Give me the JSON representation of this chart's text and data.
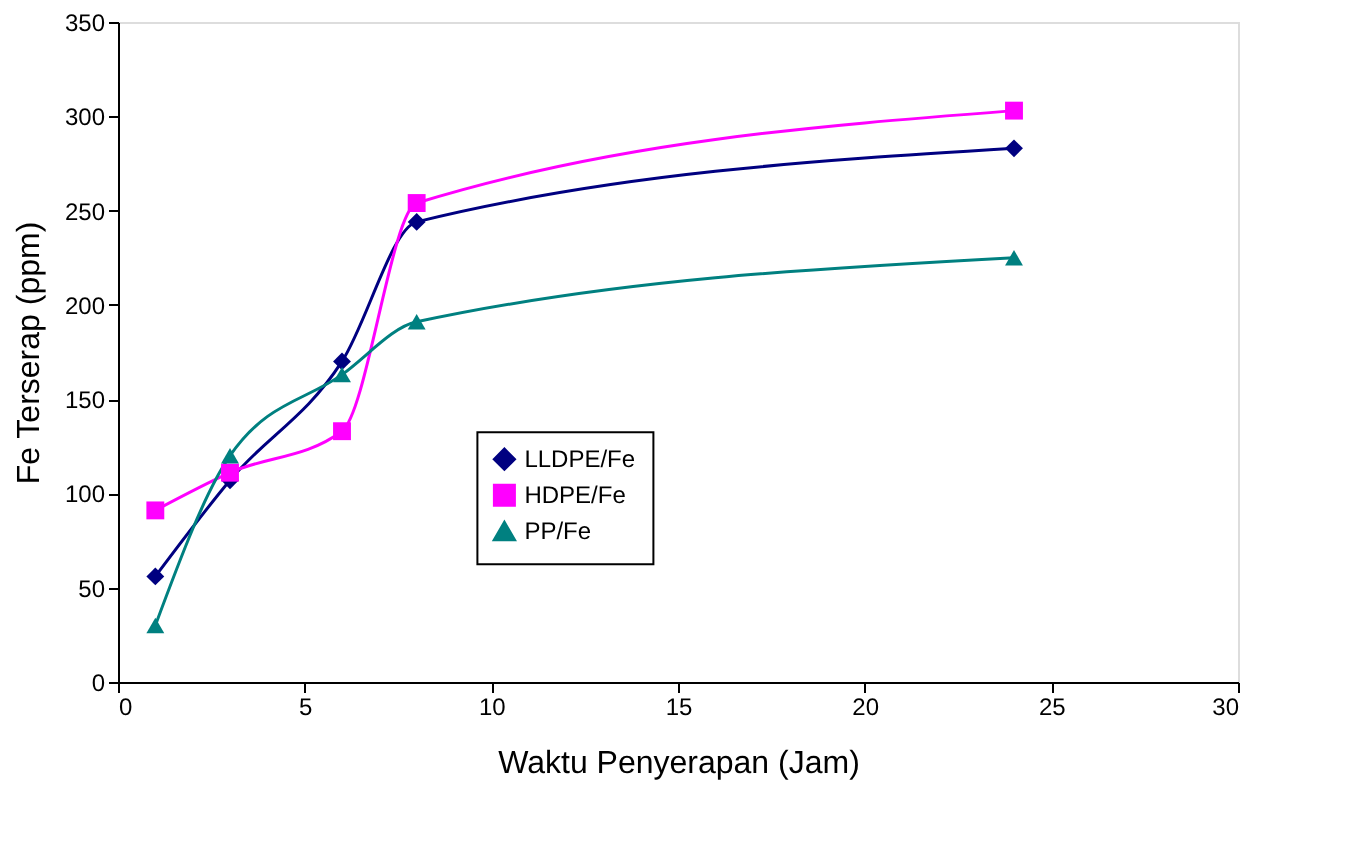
{
  "chart_data": {
    "type": "line",
    "xlabel": "Waktu Penyerapan (Jam)",
    "ylabel": "Fe Terserap (ppm)",
    "x": [
      1,
      3,
      6,
      8,
      24
    ],
    "series": [
      {
        "name": "LLDPE/Fe",
        "color": "#000080",
        "marker": "diamond",
        "values": [
          56,
          107,
          170,
          244,
          283
        ]
      },
      {
        "name": "HDPE/Fe",
        "color": "#ff00ff",
        "marker": "square",
        "values": [
          91,
          111,
          133,
          254,
          303
        ]
      },
      {
        "name": "PP/Fe",
        "color": "#008080",
        "marker": "triangle",
        "values": [
          30,
          120,
          163,
          191,
          225
        ]
      }
    ],
    "xlim": [
      0,
      30
    ],
    "xticks": [
      0,
      5,
      10,
      15,
      20,
      25,
      30
    ],
    "ylim": [
      0,
      350
    ],
    "yticks": [
      0,
      50,
      100,
      150,
      200,
      250,
      300,
      350
    ],
    "grid": false,
    "legend": "bottom",
    "line_style": "solid"
  }
}
